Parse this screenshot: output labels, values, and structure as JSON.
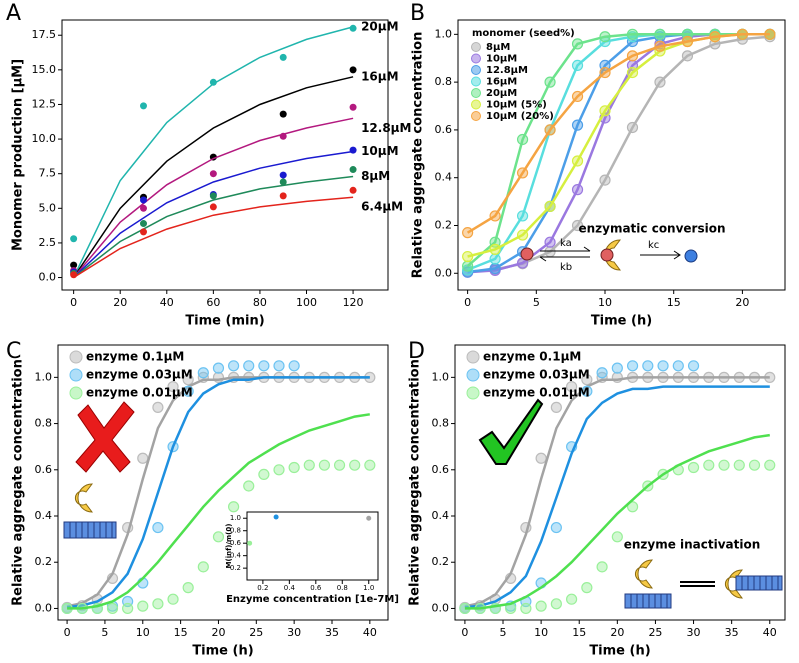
{
  "chart_data": [
    {
      "type": "line",
      "panel_label": "A",
      "xlabel": "Time (min)",
      "ylabel": "Monomer production [μM]",
      "xlim": [
        -5,
        135
      ],
      "ylim": [
        -0.9,
        18.6
      ],
      "xticks": [
        0,
        20,
        40,
        60,
        80,
        100,
        120
      ],
      "yticks": [
        {
          "value": 0,
          "label": "0.0"
        },
        2.5,
        {
          "value": 5,
          "label": "5.0"
        },
        7.5,
        {
          "value": 10,
          "label": "10.0"
        },
        12.5,
        {
          "value": 15,
          "label": "15.0"
        },
        17.5
      ],
      "legend": "inline",
      "x": [
        0,
        30,
        60,
        90,
        120
      ],
      "fit_x": [
        0,
        20,
        40,
        60,
        80,
        100,
        120
      ],
      "series": [
        {
          "name": "20μM",
          "color": "#20b5ad",
          "values": [
            2.8,
            12.4,
            14.1,
            15.9,
            18.0
          ],
          "fit": [
            0,
            7.0,
            11.2,
            14.0,
            15.9,
            17.2,
            18.1
          ]
        },
        {
          "name": "16μM",
          "color": "#000000",
          "values": [
            0.9,
            5.8,
            8.7,
            11.8,
            15.0
          ],
          "fit": [
            0,
            5.0,
            8.4,
            10.8,
            12.5,
            13.7,
            14.5
          ]
        },
        {
          "name": "12.8μM",
          "color": "#b3197f",
          "values": [
            0.5,
            5.0,
            7.5,
            10.2,
            12.3
          ],
          "fit": [
            0,
            4.0,
            6.7,
            8.6,
            9.9,
            10.8,
            11.5
          ]
        },
        {
          "name": "10μM",
          "color": "#1a1ad0",
          "values": [
            0.4,
            5.6,
            6.0,
            7.4,
            9.2
          ],
          "fit": [
            0,
            3.2,
            5.4,
            6.9,
            7.9,
            8.6,
            9.1
          ]
        },
        {
          "name": "8μM",
          "color": "#1f8a5a",
          "values": [
            0.3,
            3.9,
            5.9,
            6.9,
            7.8
          ],
          "fit": [
            0,
            2.6,
            4.4,
            5.6,
            6.4,
            6.9,
            7.3
          ]
        },
        {
          "name": "6.4μM",
          "color": "#e3241c",
          "values": [
            0.2,
            3.3,
            5.1,
            5.9,
            6.3
          ],
          "fit": [
            0,
            2.1,
            3.5,
            4.5,
            5.1,
            5.5,
            5.8
          ]
        }
      ]
    },
    {
      "type": "line",
      "panel_label": "B",
      "xlabel": "Time (h)",
      "ylabel": "Relative aggregate concentration",
      "xlim": [
        -0.7,
        23.1
      ],
      "ylim": [
        -0.07,
        1.06
      ],
      "xticks": [
        0,
        5,
        10,
        15,
        20
      ],
      "yticks": [
        {
          "value": 0,
          "label": "0.0"
        },
        0.2,
        0.4,
        0.6,
        0.8,
        {
          "value": 1,
          "label": "1.0"
        }
      ],
      "legend": "upper left",
      "legend_title": "monomer (seed%)",
      "annotation": "enzymatic conversion",
      "rate_labels": [
        "ka",
        "kb",
        "kc"
      ],
      "x": [
        0,
        2,
        4,
        6,
        8,
        10,
        12,
        14,
        16,
        18,
        20,
        22
      ],
      "series": [
        {
          "name": "8μM",
          "color": "#b5b5b5",
          "values": [
            0.007,
            0.016,
            0.04,
            0.09,
            0.2,
            0.39,
            0.61,
            0.8,
            0.91,
            0.96,
            0.98,
            0.99
          ]
        },
        {
          "name": "10μM",
          "color": "#9a78e0",
          "values": [
            0.004,
            0.012,
            0.043,
            0.13,
            0.35,
            0.65,
            0.87,
            0.96,
            0.99,
            1.0,
            1.0,
            1.0
          ]
        },
        {
          "name": "12.8μM",
          "color": "#4c9ee8",
          "values": [
            0.005,
            0.02,
            0.09,
            0.28,
            0.62,
            0.87,
            0.97,
            0.99,
            1.0,
            1.0,
            1.0,
            1.0
          ]
        },
        {
          "name": "16μM",
          "color": "#58dede",
          "values": [
            0.014,
            0.06,
            0.24,
            0.6,
            0.87,
            0.97,
            0.99,
            1.0,
            1.0,
            1.0,
            1.0,
            1.0
          ]
        },
        {
          "name": "20μM",
          "color": "#6ce38c",
          "values": [
            0.03,
            0.13,
            0.56,
            0.8,
            0.96,
            0.99,
            1.0,
            1.0,
            1.0,
            1.0,
            1.0,
            1.0
          ]
        },
        {
          "name": "10μM (5%)",
          "color": "#d6ef3e",
          "values": [
            0.07,
            0.1,
            0.16,
            0.28,
            0.47,
            0.68,
            0.84,
            0.93,
            0.97,
            0.99,
            1.0,
            1.0
          ]
        },
        {
          "name": "10μM (20%)",
          "color": "#f5a442",
          "values": [
            0.17,
            0.24,
            0.42,
            0.6,
            0.74,
            0.84,
            0.91,
            0.95,
            0.97,
            0.99,
            1.0,
            1.0
          ]
        }
      ]
    },
    {
      "type": "line",
      "panel_label": "C",
      "xlabel": "Time (h)",
      "ylabel": "Relative aggregate concentration",
      "xlim": [
        -1.2,
        42.4
      ],
      "ylim": [
        -0.05,
        1.14
      ],
      "xticks": [
        0,
        5,
        10,
        15,
        20,
        25,
        30,
        35,
        40
      ],
      "yticks": [
        {
          "value": 0,
          "label": "0.0"
        },
        0.2,
        0.4,
        0.6,
        0.8,
        {
          "value": 1,
          "label": "1.0"
        }
      ],
      "legend": "upper left",
      "x": [
        0,
        2,
        4,
        6,
        8,
        10,
        12,
        14,
        16,
        18,
        20,
        22,
        24,
        26,
        28,
        30,
        32,
        34,
        36,
        38,
        40
      ],
      "series": [
        {
          "name": "enzyme 0.1μM",
          "color": "#bcbcbc",
          "fit_color": "#a3a3a3",
          "values": [
            0.004,
            0.012,
            0.04,
            0.13,
            0.35,
            0.65,
            0.87,
            0.96,
            0.99,
            1.0,
            1.0,
            1.0,
            1.0,
            1.0,
            1.0,
            1.0,
            1.0,
            1.0,
            1.0,
            1.0,
            1.0
          ],
          "fit": [
            0.009,
            0.023,
            0.06,
            0.15,
            0.32,
            0.56,
            0.78,
            0.9,
            0.96,
            0.99,
            0.99,
            1.0,
            1.0,
            1.0,
            1.0,
            1.0,
            1.0,
            1.0,
            1.0,
            1.0,
            1.0
          ]
        },
        {
          "name": "enzyme 0.03μM",
          "color": "#6cc3f2",
          "fit_color": "#1e90e0",
          "values": [
            0,
            0,
            0,
            0.01,
            0.03,
            0.11,
            0.35,
            0.7,
            0.94,
            1.02,
            1.04,
            1.05,
            1.05,
            1.05,
            1.05,
            1.05,
            null,
            null,
            null,
            null,
            null
          ],
          "fit": [
            0.005,
            0.013,
            0.03,
            0.07,
            0.15,
            0.3,
            0.5,
            0.7,
            0.85,
            0.93,
            0.97,
            0.99,
            0.99,
            1.0,
            1.0,
            1.0,
            1.0,
            1.0,
            1.0,
            1.0,
            1.0
          ]
        },
        {
          "name": "enzyme 0.01μM",
          "color": "#9af09a",
          "fit_color": "#4fe04f",
          "values": [
            0,
            0,
            0,
            0,
            0,
            0.01,
            0.02,
            0.04,
            0.09,
            0.18,
            0.31,
            0.44,
            0.53,
            0.58,
            0.6,
            0.61,
            0.62,
            0.62,
            0.62,
            0.62,
            0.62
          ],
          "fit": [
            0,
            0,
            0.01,
            0.03,
            0.07,
            0.13,
            0.2,
            0.28,
            0.36,
            0.44,
            0.51,
            0.57,
            0.63,
            0.67,
            0.71,
            0.74,
            0.77,
            0.79,
            0.81,
            0.83,
            0.84
          ]
        }
      ]
    },
    {
      "type": "line",
      "panel_label": "D",
      "xlabel": "Time (h)",
      "ylabel": "Relative aggregate concentration",
      "xlim": [
        -1.3,
        42.0
      ],
      "ylim": [
        -0.05,
        1.14
      ],
      "xticks": [
        0,
        5,
        10,
        15,
        20,
        25,
        30,
        35,
        40
      ],
      "yticks": [
        {
          "value": 0,
          "label": "0.0"
        },
        0.2,
        0.4,
        0.6,
        0.8,
        {
          "value": 1,
          "label": "1.0"
        }
      ],
      "legend": "upper left",
      "annotation": "enzyme inactivation",
      "x": [
        0,
        2,
        4,
        6,
        8,
        10,
        12,
        14,
        16,
        18,
        20,
        22,
        24,
        26,
        28,
        30,
        32,
        34,
        36,
        38,
        40
      ],
      "series": [
        {
          "name": "enzyme 0.1μM",
          "color": "#bcbcbc",
          "fit_color": "#a3a3a3",
          "values": [
            0.004,
            0.012,
            0.04,
            0.13,
            0.35,
            0.65,
            0.87,
            0.96,
            0.99,
            1.0,
            1.0,
            1.0,
            1.0,
            1.0,
            1.0,
            1.0,
            1.0,
            1.0,
            1.0,
            1.0,
            1.0
          ],
          "fit": [
            0.009,
            0.023,
            0.06,
            0.15,
            0.32,
            0.56,
            0.78,
            0.9,
            0.96,
            0.99,
            0.99,
            1.0,
            1.0,
            1.0,
            1.0,
            1.0,
            1.0,
            1.0,
            1.0,
            1.0,
            1.0
          ]
        },
        {
          "name": "enzyme 0.03μM",
          "color": "#6cc3f2",
          "fit_color": "#1e90e0",
          "values": [
            0,
            0,
            0,
            0.01,
            0.03,
            0.11,
            0.35,
            0.7,
            0.94,
            1.02,
            1.04,
            1.05,
            1.05,
            1.05,
            1.05,
            1.05,
            null,
            null,
            null,
            null,
            null
          ],
          "fit": [
            0.005,
            0.012,
            0.03,
            0.07,
            0.14,
            0.29,
            0.48,
            0.67,
            0.82,
            0.89,
            0.93,
            0.95,
            0.95,
            0.96,
            0.96,
            0.96,
            0.96,
            0.96,
            0.96,
            0.96,
            0.96
          ]
        },
        {
          "name": "enzyme 0.01μM",
          "color": "#9af09a",
          "fit_color": "#4fe04f",
          "values": [
            0,
            0,
            0,
            0,
            0,
            0.01,
            0.02,
            0.04,
            0.09,
            0.18,
            0.31,
            0.44,
            0.53,
            0.58,
            0.6,
            0.61,
            0.62,
            0.62,
            0.62,
            0.62,
            0.62
          ],
          "fit": [
            0,
            0,
            0.01,
            0.02,
            0.05,
            0.09,
            0.14,
            0.2,
            0.27,
            0.34,
            0.41,
            0.47,
            0.53,
            0.58,
            0.62,
            0.65,
            0.68,
            0.7,
            0.72,
            0.74,
            0.75
          ]
        }
      ]
    },
    {
      "type": "scatter",
      "xlabel": "Enzyme concentration [1e-7M]",
      "ylabel": "M(inf)/m(0)",
      "xlim": [
        0.08,
        1.07
      ],
      "ylim": [
        0.01,
        1.1
      ],
      "xticks": [
        0.2,
        0.4,
        0.6,
        0.8,
        {
          "value": 1,
          "label": "1.0"
        }
      ],
      "yticks": [
        0.2,
        0.4,
        0.6,
        0.8,
        {
          "value": 1,
          "label": "1.0"
        }
      ],
      "x": [
        0.1,
        0.3,
        1.0
      ],
      "colors": [
        "#9af09a",
        "#1e90e0",
        "#a3a3a3"
      ],
      "values": [
        0.6,
        1.02,
        1.0
      ]
    }
  ]
}
